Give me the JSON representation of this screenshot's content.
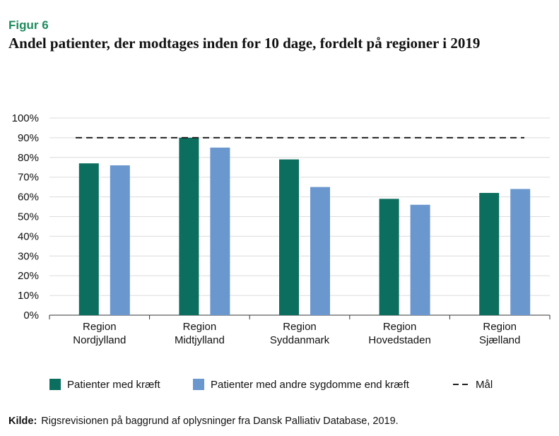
{
  "figure": {
    "label": "Figur 6",
    "title": "Andel patienter, der modtages inden for 10 dage, fordelt på regioner i 2019"
  },
  "source": {
    "key": "Kilde:",
    "text": "Rigsrevisionen på baggrund af oplysninger fra Dansk Palliativ Database, 2019."
  },
  "chart_data": {
    "type": "bar",
    "categories": [
      [
        "Region",
        "Nordjylland"
      ],
      [
        "Region",
        "Midtjylland"
      ],
      [
        "Region",
        "Syddanmark"
      ],
      [
        "Region",
        "Hovedstaden"
      ],
      [
        "Region",
        "Sjælland"
      ]
    ],
    "series": [
      {
        "name": "Patienter med kræft",
        "color": "#0b6e5e",
        "values": [
          77,
          90,
          79,
          59,
          62
        ]
      },
      {
        "name": "Patienter med andre sygdomme end kræft",
        "color": "#6b97cf",
        "values": [
          76,
          85,
          65,
          56,
          64
        ]
      }
    ],
    "target": {
      "name": "Mål",
      "value": 90,
      "style": "dashed",
      "color": "#222222"
    },
    "ylim": [
      0,
      100
    ],
    "yticks": [
      0,
      10,
      20,
      30,
      40,
      50,
      60,
      70,
      80,
      90,
      100
    ],
    "ytick_format": "{v}%",
    "grid": true,
    "legend": "bottom"
  }
}
